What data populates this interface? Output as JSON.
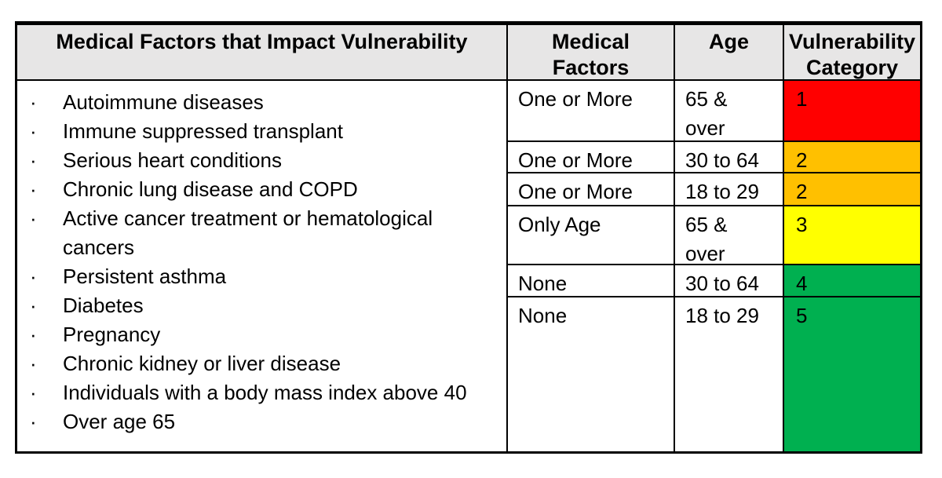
{
  "table": {
    "left_header": "Medical Factors that Impact Vulnerability",
    "headers": [
      "Medical\nFactors",
      "Age",
      "Vulnerability\nCategory"
    ],
    "medical_factors_list": [
      "Autoimmune diseases",
      "Immune suppressed transplant",
      "Serious heart conditions",
      "Chronic lung disease and COPD",
      "Active cancer treatment or hematological cancers",
      "Persistent asthma",
      "Diabetes",
      "Pregnancy",
      "Chronic kidney or liver disease",
      "Individuals with a body mass index above 40",
      "Over age 65"
    ],
    "rows": [
      {
        "medical_factors": "One or More",
        "age": "65 &\nover",
        "category": "1",
        "color": "#FF0000"
      },
      {
        "medical_factors": "One or More",
        "age": "30 to 64",
        "category": "2",
        "color": "#FFC000"
      },
      {
        "medical_factors": "One or More",
        "age": "18 to 29",
        "category": "2",
        "color": "#FFC000"
      },
      {
        "medical_factors": "Only Age",
        "age": "65 &\nover",
        "category": "3",
        "color": "#FFFF00"
      },
      {
        "medical_factors": "None",
        "age": "30 to 64",
        "category": "4",
        "color": "#00B050"
      },
      {
        "medical_factors": "None",
        "age": "18 to 29",
        "category": "5",
        "color": "#00B050"
      }
    ],
    "colors": {
      "header_bg": "#E7E6E6",
      "border": "#000000",
      "category_1": "#FF0000",
      "category_2": "#FFC000",
      "category_3": "#FFFF00",
      "category_4": "#00B050",
      "category_5": "#00B050"
    }
  }
}
